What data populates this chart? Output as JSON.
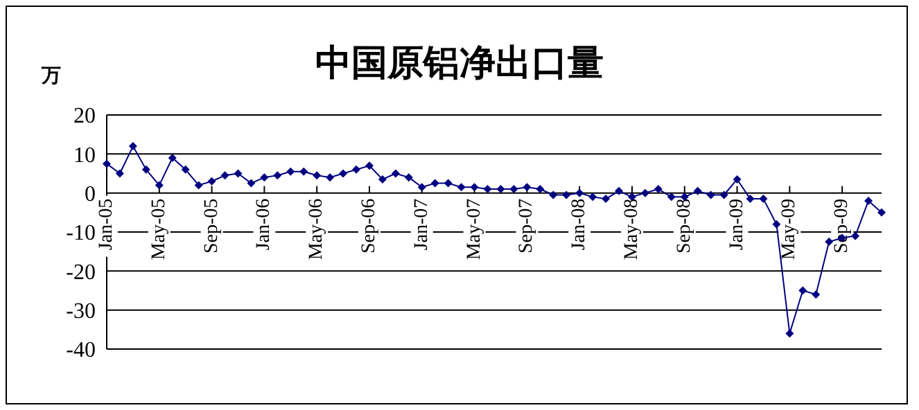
{
  "chart_data": {
    "type": "line",
    "title": "中国原铝净出口量",
    "ylabel": "万",
    "categories": [
      "Jan-05",
      null,
      null,
      null,
      "May-05",
      null,
      null,
      null,
      "Sep-05",
      null,
      null,
      null,
      "Jan-06",
      null,
      null,
      null,
      "May-06",
      null,
      null,
      null,
      "Sep-06",
      null,
      null,
      null,
      "Jan-07",
      null,
      null,
      null,
      "May-07",
      null,
      null,
      null,
      "Sep-07",
      null,
      null,
      null,
      "Jan-08",
      null,
      null,
      null,
      "May-08",
      null,
      null,
      null,
      "Sep-08",
      null,
      null,
      null,
      "Jan-09",
      null,
      null,
      null,
      "May-09",
      null,
      null,
      null,
      "Sep-09",
      null,
      null,
      null
    ],
    "series": [
      {
        "color": "#000080",
        "values": [
          7.5,
          5,
          12,
          6,
          2,
          9,
          6,
          2,
          3,
          4.5,
          5,
          2.5,
          4,
          4.5,
          5.5,
          5.5,
          4.5,
          4,
          5,
          6,
          7,
          3.5,
          5,
          4,
          1.5,
          2.5,
          2.5,
          1.5,
          1.5,
          1,
          1,
          1,
          1.5,
          1,
          -0.5,
          -0.5,
          0,
          -1,
          -1.5,
          0.5,
          -1,
          0,
          1,
          -1,
          -1,
          0.5,
          -0.5,
          -0.5,
          3.5,
          -1.5,
          -1.5,
          -8,
          -36,
          -25,
          -26,
          -12.5,
          -11.5,
          -11,
          -2,
          -5
        ]
      }
    ],
    "ylim": [
      -40,
      20
    ],
    "yticks": [
      -40,
      -30,
      -20,
      -10,
      0,
      10,
      20
    ],
    "grid": "y",
    "marker": "diamond",
    "line_style": "solid",
    "legend": false
  }
}
